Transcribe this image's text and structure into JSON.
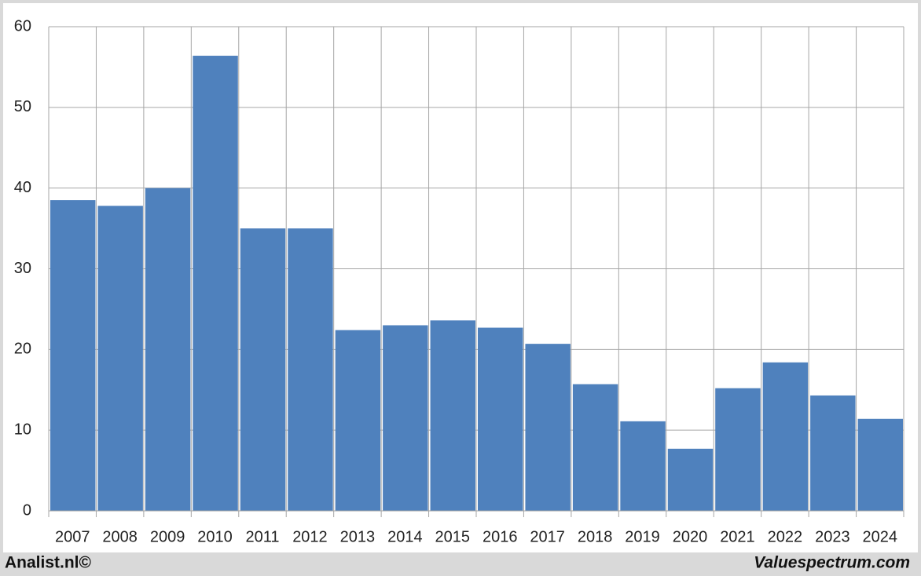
{
  "chart_data": {
    "type": "bar",
    "categories": [
      "2007",
      "2008",
      "2009",
      "2010",
      "2011",
      "2012",
      "2013",
      "2014",
      "2015",
      "2016",
      "2017",
      "2018",
      "2019",
      "2020",
      "2021",
      "2022",
      "2023",
      "2024"
    ],
    "values": [
      38.5,
      37.8,
      40.0,
      56.4,
      35.0,
      35.0,
      22.4,
      23.0,
      23.6,
      22.7,
      20.7,
      15.7,
      11.1,
      7.7,
      15.2,
      18.4,
      14.3,
      11.4
    ],
    "color": "#4f81bd",
    "ylim": [
      0,
      60
    ],
    "yticks": [
      0,
      10,
      20,
      30,
      40,
      50,
      60
    ],
    "grid": true
  },
  "footer": {
    "left": "Analist.nl©",
    "right": "Valuespectrum.com"
  }
}
